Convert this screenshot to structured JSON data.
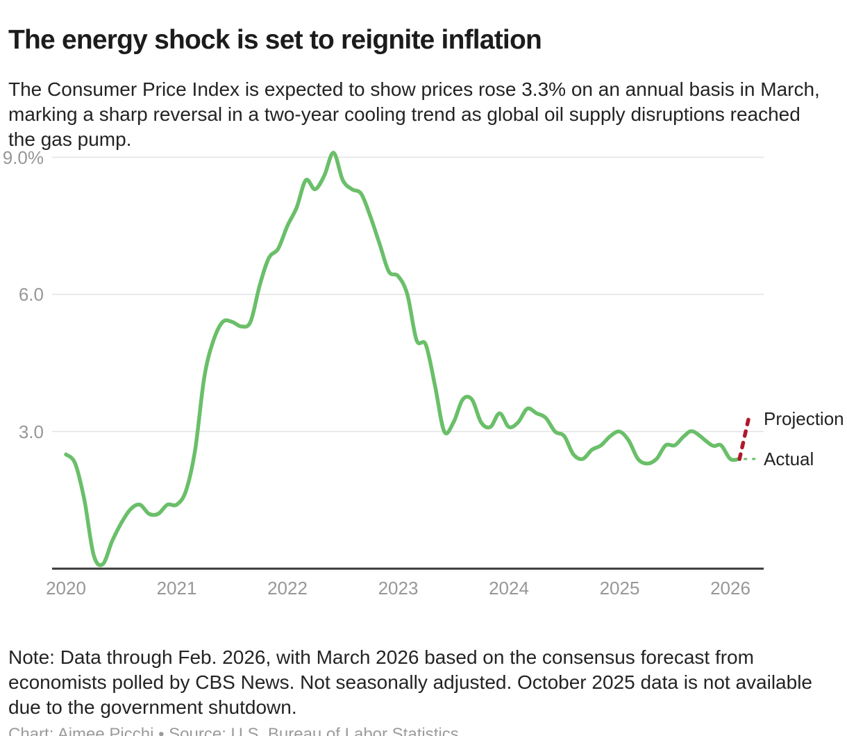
{
  "header": {
    "title": "The energy shock is set to reignite inflation",
    "subtitle": "The Consumer Price Index is expected to show prices rose 3.3% on an annual basis in March, marking a sharp reversal in a two-year cooling trend as global oil supply disruptions reached the gas pump."
  },
  "footer": {
    "note": "Note: Data through Feb. 2026, with March 2026 based on the consensus forecast from economists polled by CBS News. Not seasonally adjusted. October 2025 data is not available due to the government shutdown.",
    "credit": "Chart: Aimee Picchi • Source: U.S. Bureau of Labor Statistics"
  },
  "chart_data": {
    "type": "line",
    "unit": "%",
    "y_axis": {
      "tick_labels": [
        "9.0%",
        "6.0",
        "3.0"
      ],
      "tick_values": [
        9.0,
        6.0,
        3.0
      ],
      "range": [
        0,
        9.3
      ],
      "grid": true
    },
    "x_axis": {
      "tick_labels": [
        "2020",
        "2021",
        "2022",
        "2023",
        "2024",
        "2025",
        "2026"
      ],
      "start_month": "2020-01",
      "end_month": "2026-03"
    },
    "legend": {
      "projection_label": "Projection",
      "actual_label": "Actual",
      "position": "right of line end"
    },
    "series": [
      {
        "name": "Actual",
        "color": "#6abf69",
        "line_style": "solid",
        "start_month": "2020-01",
        "note": "October 2025 is null (government shutdown); line drawn continuously through the gap",
        "values": [
          2.5,
          2.3,
          1.5,
          0.3,
          0.1,
          0.6,
          1.0,
          1.3,
          1.4,
          1.2,
          1.2,
          1.4,
          1.4,
          1.7,
          2.6,
          4.2,
          5.0,
          5.4,
          5.4,
          5.3,
          5.4,
          6.2,
          6.8,
          7.0,
          7.5,
          7.9,
          8.5,
          8.3,
          8.6,
          9.1,
          8.5,
          8.3,
          8.2,
          7.7,
          7.1,
          6.5,
          6.4,
          6.0,
          5.0,
          4.9,
          4.0,
          3.0,
          3.2,
          3.7,
          3.7,
          3.2,
          3.1,
          3.4,
          3.1,
          3.2,
          3.5,
          3.4,
          3.3,
          3.0,
          2.9,
          2.5,
          2.4,
          2.6,
          2.7,
          2.9,
          3.0,
          2.8,
          2.4,
          2.3,
          2.4,
          2.7,
          2.7,
          2.9,
          3.0,
          null,
          2.7,
          2.7,
          2.4,
          2.4
        ]
      },
      {
        "name": "Projection",
        "color": "#b0182c",
        "line_style": "dashed",
        "points": [
          {
            "month": "2026-02",
            "value": 2.4
          },
          {
            "month": "2026-03",
            "value": 3.3
          }
        ]
      }
    ]
  },
  "colors": {
    "actual_line": "#6abf69",
    "projection_line": "#b0182c",
    "gridline": "#e2e2e2",
    "axis_line": "#383838",
    "tick_label": "#979797",
    "body_text": "#232323",
    "credit_text": "#9b9b9b"
  }
}
